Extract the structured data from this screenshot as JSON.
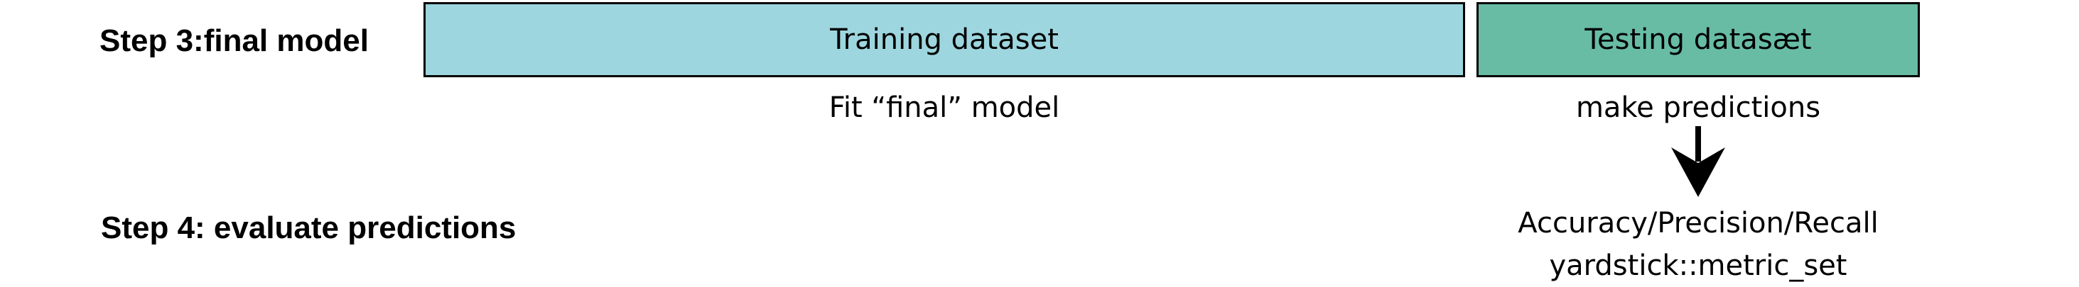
{
  "step3": {
    "label": "Step 3:final model",
    "training_box": {
      "label": "Training dataset",
      "color": "#9dd6de"
    },
    "testing_box": {
      "label": "Testing datasæt",
      "color": "#68bca4"
    },
    "training_caption": "Fit “final” model",
    "testing_caption": "make predictions"
  },
  "step4": {
    "label": "Step 4: evaluate predictions",
    "metrics_line1": "Accuracy/Precision/Recall",
    "metrics_line2": "yardstick::metric_set"
  },
  "arrow": {
    "icon": "down-arrow-icon"
  }
}
